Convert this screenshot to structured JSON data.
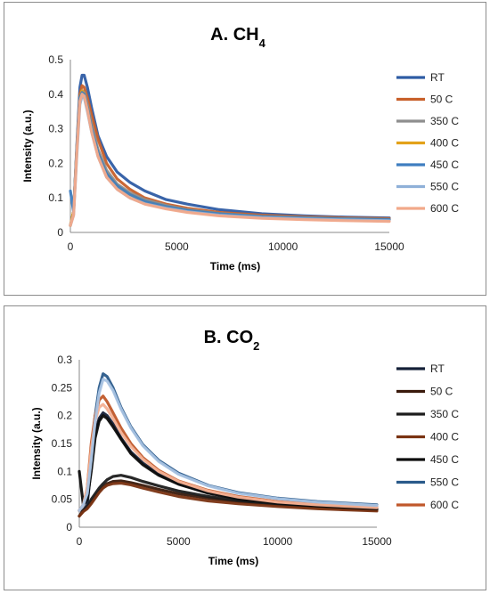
{
  "chart_data": [
    {
      "type": "line",
      "title": "A. CH",
      "title_subscript": "4",
      "xlabel": "Time (ms)",
      "ylabel": "Intensity (a.u.)",
      "xlim": [
        0,
        15000
      ],
      "ylim": [
        0,
        0.5
      ],
      "x_ticks": [
        "0",
        "5000",
        "10000",
        "15000"
      ],
      "y_ticks": [
        "0",
        "0.1",
        "0.2",
        "0.3",
        "0.4",
        "0.5"
      ],
      "grid": false,
      "legend_position": "right",
      "series": [
        {
          "name": "RT",
          "color": "#2e5ca4",
          "x": [
            0,
            150,
            300,
            450,
            550,
            650,
            800,
            1000,
            1300,
            1700,
            2200,
            2800,
            3500,
            4500,
            5500,
            7000,
            9000,
            11000,
            13000,
            15000
          ],
          "y": [
            0.02,
            0.06,
            0.25,
            0.42,
            0.455,
            0.455,
            0.42,
            0.36,
            0.28,
            0.22,
            0.175,
            0.145,
            0.12,
            0.095,
            0.082,
            0.066,
            0.054,
            0.048,
            0.044,
            0.042
          ]
        },
        {
          "name": "50 C",
          "color": "#c8602a",
          "x": [
            0,
            150,
            300,
            450,
            550,
            650,
            800,
            1000,
            1300,
            1700,
            2200,
            2800,
            3500,
            4500,
            5500,
            7000,
            9000,
            11000,
            13000,
            15000
          ],
          "y": [
            0.02,
            0.06,
            0.24,
            0.4,
            0.425,
            0.42,
            0.39,
            0.34,
            0.27,
            0.2,
            0.155,
            0.125,
            0.1,
            0.082,
            0.07,
            0.058,
            0.05,
            0.045,
            0.042,
            0.04
          ]
        },
        {
          "name": "350 C",
          "color": "#8e8e8e",
          "x": [
            0,
            150,
            300,
            450,
            550,
            650,
            800,
            1000,
            1300,
            1700,
            2200,
            2800,
            3500,
            4500,
            5500,
            7000,
            9000,
            11000,
            13000,
            15000
          ],
          "y": [
            0.02,
            0.06,
            0.24,
            0.39,
            0.41,
            0.405,
            0.37,
            0.31,
            0.24,
            0.18,
            0.14,
            0.115,
            0.095,
            0.078,
            0.066,
            0.055,
            0.047,
            0.043,
            0.04,
            0.038
          ]
        },
        {
          "name": "400 C",
          "color": "#e3a21a",
          "x": [
            0,
            150,
            300,
            450,
            550,
            650,
            800,
            1000,
            1300,
            1700,
            2200,
            2800,
            3500,
            4500,
            5500,
            7000,
            9000,
            11000,
            13000,
            15000
          ],
          "y": [
            0.02,
            0.06,
            0.24,
            0.39,
            0.41,
            0.4,
            0.36,
            0.3,
            0.23,
            0.17,
            0.135,
            0.11,
            0.09,
            0.075,
            0.064,
            0.054,
            0.046,
            0.042,
            0.039,
            0.037
          ]
        },
        {
          "name": "450 C",
          "color": "#3f7ec0",
          "x": [
            0,
            150,
            300,
            450,
            550,
            650,
            800,
            1000,
            1300,
            1700,
            2200,
            2800,
            3500,
            4500,
            5500,
            7000,
            9000,
            11000,
            13000,
            15000
          ],
          "y": [
            0.12,
            0.06,
            0.24,
            0.39,
            0.405,
            0.4,
            0.36,
            0.3,
            0.23,
            0.17,
            0.135,
            0.11,
            0.09,
            0.075,
            0.064,
            0.054,
            0.046,
            0.042,
            0.039,
            0.037
          ]
        },
        {
          "name": "550 C",
          "color": "#8fb0d8",
          "x": [
            0,
            150,
            300,
            450,
            550,
            650,
            800,
            1000,
            1300,
            1700,
            2200,
            2800,
            3500,
            4500,
            5500,
            7000,
            9000,
            11000,
            13000,
            15000
          ],
          "y": [
            0.02,
            0.05,
            0.22,
            0.37,
            0.395,
            0.39,
            0.35,
            0.29,
            0.22,
            0.16,
            0.125,
            0.1,
            0.083,
            0.07,
            0.06,
            0.05,
            0.043,
            0.039,
            0.036,
            0.034
          ]
        },
        {
          "name": "600 C",
          "color": "#f2a98a",
          "x": [
            0,
            150,
            300,
            450,
            550,
            650,
            800,
            1000,
            1300,
            1700,
            2200,
            2800,
            3500,
            4500,
            5500,
            7000,
            9000,
            11000,
            13000,
            15000
          ],
          "y": [
            0.02,
            0.05,
            0.23,
            0.38,
            0.4,
            0.395,
            0.355,
            0.29,
            0.22,
            0.16,
            0.125,
            0.1,
            0.082,
            0.068,
            0.058,
            0.048,
            0.041,
            0.037,
            0.034,
            0.032
          ]
        }
      ]
    },
    {
      "type": "line",
      "title": "B. CO",
      "title_subscript": "2",
      "xlabel": "Time (ms)",
      "ylabel": "Intensity (a.u.)",
      "xlim": [
        0,
        15000
      ],
      "ylim": [
        0,
        0.3
      ],
      "x_ticks": [
        "0",
        "5000",
        "10000",
        "15000"
      ],
      "y_ticks": [
        "0",
        "0.05",
        "0.1",
        "0.15",
        "0.2",
        "0.25",
        "0.3"
      ],
      "grid": false,
      "legend_position": "right",
      "series": [
        {
          "name": "RT",
          "color": "#152038",
          "x": [
            0,
            200,
            400,
            600,
            800,
            1000,
            1200,
            1400,
            1700,
            2100,
            2600,
            3200,
            4000,
            5000,
            6500,
            8000,
            10000,
            12000,
            15000
          ],
          "y": [
            0.03,
            0.03,
            0.04,
            0.11,
            0.17,
            0.195,
            0.205,
            0.2,
            0.185,
            0.16,
            0.135,
            0.115,
            0.095,
            0.078,
            0.062,
            0.052,
            0.043,
            0.038,
            0.033
          ]
        },
        {
          "name": "50 C",
          "color": "#3a1a0c",
          "x": [
            0,
            200,
            400,
            600,
            800,
            1000,
            1200,
            1400,
            1700,
            2100,
            2600,
            3200,
            4000,
            5000,
            6500,
            8000,
            10000,
            12000,
            15000
          ],
          "y": [
            0.02,
            0.03,
            0.035,
            0.045,
            0.055,
            0.065,
            0.072,
            0.078,
            0.082,
            0.083,
            0.08,
            0.075,
            0.068,
            0.06,
            0.052,
            0.046,
            0.04,
            0.036,
            0.031
          ]
        },
        {
          "name": "350 C",
          "color": "#1c1c1c",
          "x": [
            0,
            200,
            400,
            600,
            800,
            1000,
            1200,
            1400,
            1700,
            2100,
            2600,
            3200,
            4000,
            5000,
            6500,
            8000,
            10000,
            12000,
            15000
          ],
          "y": [
            0.02,
            0.03,
            0.035,
            0.05,
            0.06,
            0.07,
            0.078,
            0.085,
            0.091,
            0.093,
            0.089,
            0.082,
            0.074,
            0.065,
            0.055,
            0.048,
            0.041,
            0.037,
            0.032
          ]
        },
        {
          "name": "400 C",
          "color": "#7a3312",
          "x": [
            0,
            200,
            400,
            600,
            800,
            1000,
            1200,
            1400,
            1700,
            2100,
            2600,
            3200,
            4000,
            5000,
            6500,
            8000,
            10000,
            12000,
            15000
          ],
          "y": [
            0.02,
            0.028,
            0.033,
            0.042,
            0.052,
            0.062,
            0.07,
            0.075,
            0.078,
            0.079,
            0.076,
            0.07,
            0.063,
            0.055,
            0.047,
            0.042,
            0.037,
            0.033,
            0.029
          ]
        },
        {
          "name": "450 C",
          "color": "#0d0d0d",
          "x": [
            0,
            200,
            400,
            600,
            800,
            1000,
            1200,
            1400,
            1700,
            2100,
            2600,
            3200,
            4000,
            5000,
            6500,
            8000,
            10000,
            12000,
            15000
          ],
          "y": [
            0.1,
            0.04,
            0.05,
            0.1,
            0.16,
            0.19,
            0.2,
            0.195,
            0.18,
            0.158,
            0.132,
            0.112,
            0.093,
            0.077,
            0.061,
            0.051,
            0.043,
            0.038,
            0.033
          ]
        },
        {
          "name": "550 C",
          "color": "#2a5a8a",
          "x": [
            0,
            200,
            400,
            600,
            800,
            1000,
            1200,
            1400,
            1700,
            2100,
            2600,
            3200,
            4000,
            5000,
            6500,
            8000,
            10000,
            12000,
            15000
          ],
          "y": [
            0.03,
            0.04,
            0.06,
            0.13,
            0.2,
            0.25,
            0.275,
            0.27,
            0.25,
            0.215,
            0.18,
            0.148,
            0.12,
            0.097,
            0.075,
            0.062,
            0.052,
            0.046,
            0.04
          ]
        },
        {
          "name": "600 C",
          "color": "#c0582a",
          "x": [
            0,
            200,
            400,
            600,
            800,
            1000,
            1200,
            1400,
            1700,
            2100,
            2600,
            3200,
            4000,
            5000,
            6500,
            8000,
            10000,
            12000,
            15000
          ],
          "y": [
            0.03,
            0.04,
            0.07,
            0.15,
            0.2,
            0.228,
            0.235,
            0.225,
            0.205,
            0.178,
            0.15,
            0.125,
            0.102,
            0.083,
            0.066,
            0.055,
            0.046,
            0.041,
            0.036
          ]
        },
        {
          "name": "",
          "color": "#f3b093",
          "x": [
            0,
            200,
            400,
            600,
            800,
            1000,
            1200,
            1400,
            1700,
            2100,
            2600,
            3200,
            4000,
            5000,
            6500,
            8000,
            10000,
            12000,
            15000
          ],
          "y": [
            0.03,
            0.04,
            0.07,
            0.14,
            0.19,
            0.215,
            0.22,
            0.212,
            0.195,
            0.17,
            0.145,
            0.122,
            0.1,
            0.082,
            0.065,
            0.054,
            0.045,
            0.04,
            0.035
          ]
        },
        {
          "name": "",
          "color": "#a9c3e3",
          "x": [
            0,
            200,
            400,
            600,
            800,
            1000,
            1200,
            1400,
            1700,
            2100,
            2600,
            3200,
            4000,
            5000,
            6500,
            8000,
            10000,
            12000,
            15000
          ],
          "y": [
            0.03,
            0.04,
            0.06,
            0.12,
            0.19,
            0.24,
            0.265,
            0.262,
            0.245,
            0.212,
            0.178,
            0.146,
            0.118,
            0.095,
            0.074,
            0.061,
            0.051,
            0.045,
            0.039
          ]
        }
      ]
    }
  ]
}
